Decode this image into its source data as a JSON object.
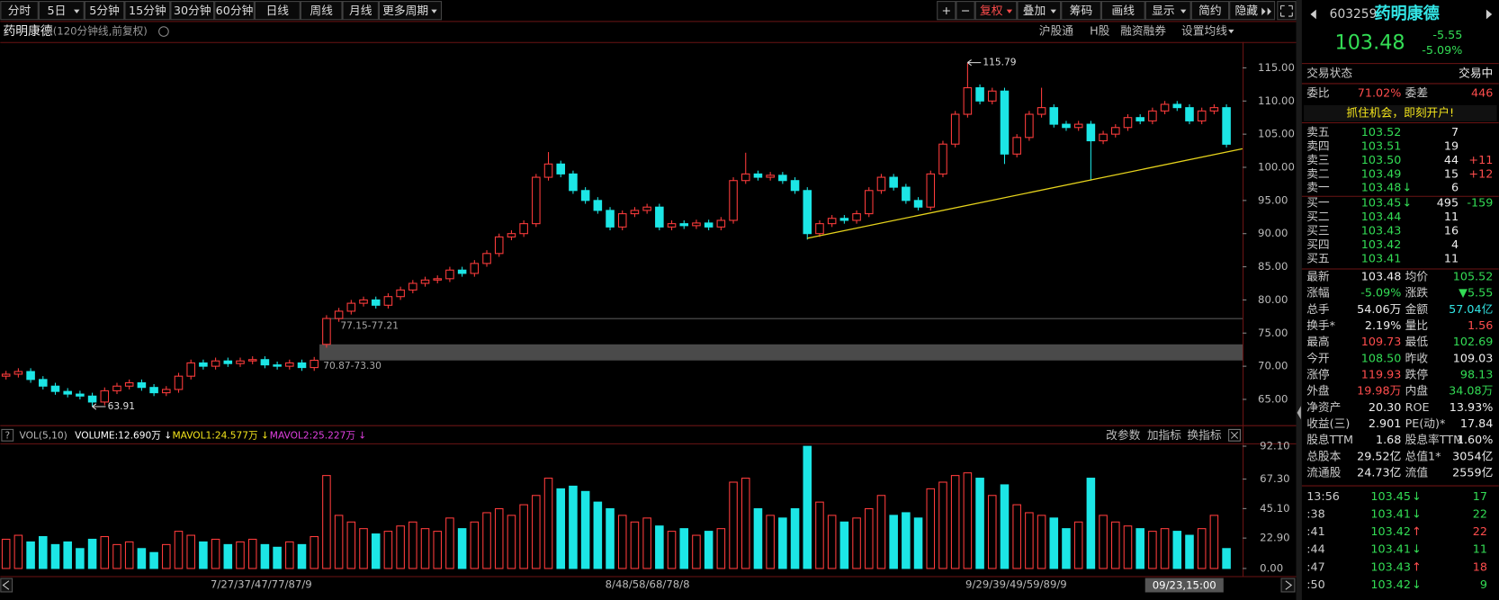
{
  "toolbar": {
    "periods": [
      "分时",
      "5日",
      "5分钟",
      "15分钟",
      "30分钟",
      "60分钟",
      "日线",
      "周线",
      "月线",
      "更多周期"
    ],
    "tools": [
      "+",
      "−",
      "复权",
      "叠加",
      "筹码",
      "画线",
      "显示",
      "简约",
      "隐藏"
    ]
  },
  "header": {
    "name": "药明康德",
    "mode": "(120分钟线,前复权)",
    "links": [
      "沪股通",
      "H股",
      "融资融券",
      "设置均线"
    ]
  },
  "chart_data": [
    {
      "type": "candlestick",
      "open": [
        68.5,
        68.8,
        69.2,
        68.0,
        67.0,
        66.2,
        65.8,
        65.5,
        64.6,
        66.3,
        67.0,
        67.5,
        66.8,
        66.0,
        66.5,
        68.5,
        70.5,
        70.0,
        70.8,
        70.4,
        70.8,
        71.0,
        70.2,
        70.0,
        70.5,
        69.8,
        73.3,
        77.2,
        78.3,
        79.5,
        80.0,
        79.2,
        80.5,
        81.5,
        82.5,
        83.0,
        83.2,
        84.5,
        84.0,
        85.5,
        87.0,
        89.5,
        90.0,
        91.5,
        98.5,
        100.5,
        99.0,
        96.5,
        95.0,
        93.5,
        91.0,
        93.0,
        93.5,
        94.0,
        91.0,
        91.5,
        91.2,
        91.6,
        91.0,
        92.0,
        98.0,
        99.0,
        98.5,
        98.8,
        98.0,
        96.5,
        90.0,
        91.5,
        92.3,
        92.0,
        93.0,
        96.5,
        98.5,
        97.0,
        95.0,
        94.0,
        99.0,
        103.5,
        108.0,
        112.0,
        110.0,
        111.5,
        102.0,
        104.5,
        108.0,
        109.0,
        106.5,
        106.0,
        106.5,
        104.0,
        105.0,
        106.0,
        107.5,
        107.0,
        108.5,
        109.5,
        109.0,
        107.0,
        108.5,
        109.0
      ],
      "high": [
        69.3,
        69.7,
        69.7,
        68.5,
        67.5,
        66.7,
        66.3,
        66.0,
        66.8,
        67.5,
        68.0,
        68.0,
        67.3,
        67.0,
        69.0,
        71.0,
        71.0,
        71.3,
        71.3,
        71.3,
        71.5,
        71.5,
        70.7,
        71.0,
        71.0,
        71.4,
        77.7,
        78.8,
        80.0,
        80.5,
        80.5,
        81.0,
        82.0,
        83.0,
        83.5,
        83.7,
        85.0,
        85.0,
        86.0,
        87.5,
        90.0,
        90.5,
        92.0,
        99.0,
        102.3,
        101.0,
        99.5,
        97.0,
        95.5,
        94.0,
        93.5,
        94.0,
        94.5,
        94.5,
        92.0,
        92.0,
        92.1,
        92.1,
        92.5,
        98.5,
        102.2,
        99.5,
        99.3,
        99.3,
        98.5,
        97.0,
        92.0,
        92.8,
        92.8,
        93.5,
        97.0,
        99.0,
        99.0,
        97.5,
        95.5,
        99.5,
        104.0,
        108.5,
        115.79,
        112.5,
        112.0,
        112.0,
        105.0,
        108.5,
        112.0,
        109.5,
        107.0,
        107.0,
        107.0,
        105.5,
        106.5,
        108.0,
        108.0,
        109.0,
        110.0,
        110.0,
        109.5,
        109.0,
        109.5,
        109.5
      ],
      "low": [
        68.0,
        68.3,
        67.5,
        66.5,
        65.7,
        65.3,
        65.0,
        63.91,
        64.1,
        65.8,
        66.5,
        66.3,
        65.5,
        65.5,
        66.0,
        68.0,
        69.5,
        69.5,
        69.9,
        69.9,
        70.3,
        69.7,
        69.5,
        69.5,
        69.3,
        69.3,
        72.8,
        76.7,
        77.8,
        79.0,
        78.7,
        78.7,
        80.0,
        81.0,
        82.0,
        82.5,
        82.7,
        83.5,
        83.5,
        85.0,
        86.5,
        89.0,
        89.5,
        91.0,
        98.0,
        98.5,
        96.0,
        94.5,
        93.0,
        90.5,
        90.5,
        92.5,
        93.0,
        90.5,
        90.5,
        90.7,
        90.7,
        90.5,
        90.5,
        91.5,
        97.5,
        98.0,
        98.0,
        97.5,
        96.0,
        89.1,
        89.5,
        91.0,
        91.5,
        91.5,
        92.5,
        96.0,
        96.5,
        94.5,
        93.5,
        93.5,
        98.5,
        103.0,
        107.5,
        109.5,
        109.5,
        100.5,
        101.5,
        104.0,
        107.5,
        106.0,
        105.5,
        105.5,
        98.0,
        103.5,
        104.5,
        105.5,
        106.5,
        106.5,
        108.0,
        108.5,
        106.5,
        106.5,
        108.0,
        103.0
      ],
      "close": [
        68.8,
        69.2,
        68.0,
        67.0,
        66.2,
        65.8,
        65.5,
        64.6,
        66.3,
        67.0,
        67.5,
        66.8,
        66.0,
        66.5,
        68.5,
        70.5,
        70.0,
        70.8,
        70.4,
        70.8,
        71.0,
        70.2,
        70.0,
        70.5,
        69.8,
        70.9,
        77.2,
        78.3,
        79.5,
        80.0,
        79.2,
        80.5,
        81.5,
        82.5,
        83.0,
        83.2,
        84.5,
        84.0,
        85.5,
        87.0,
        89.5,
        90.0,
        91.5,
        98.5,
        100.5,
        99.0,
        96.5,
        95.0,
        93.5,
        91.0,
        93.0,
        93.5,
        94.0,
        91.0,
        91.5,
        91.2,
        91.6,
        91.0,
        92.0,
        98.0,
        99.0,
        98.5,
        98.8,
        98.0,
        96.5,
        90.0,
        91.5,
        92.3,
        92.0,
        93.0,
        96.5,
        98.5,
        97.0,
        95.0,
        94.0,
        99.0,
        103.5,
        108.0,
        112.0,
        110.0,
        111.5,
        102.0,
        104.5,
        108.0,
        109.0,
        106.5,
        106.0,
        106.5,
        104.0,
        105.0,
        106.0,
        107.5,
        107.0,
        108.5,
        109.5,
        109.0,
        107.0,
        108.5,
        109.0,
        103.48
      ],
      "ylim": [
        61.4,
        118.75
      ],
      "yticks": [
        {
          "value": 65,
          "label": "65.00"
        },
        {
          "value": 70,
          "label": "70.00"
        },
        {
          "value": 75,
          "label": "75.00"
        },
        {
          "value": 80,
          "label": "80.00"
        },
        {
          "value": 85,
          "label": "85.00"
        },
        {
          "value": 90,
          "label": "90.00"
        },
        {
          "value": 95,
          "label": "95.00"
        },
        {
          "value": 100,
          "label": "100.00"
        },
        {
          "value": 105,
          "label": "105.00"
        },
        {
          "value": 110,
          "label": "110.00"
        },
        {
          "value": 115,
          "label": "115.00"
        }
      ],
      "color_up": "#ff3c3c",
      "color_down": "#1ce6e6",
      "trendline": {
        "x": [
          65,
          100.3
        ],
        "y": [
          89.3,
          102.8
        ],
        "color": "#e6d31c"
      },
      "gap_band": {
        "low": 70.87,
        "high": 73.3,
        "color": "#4a4a4a"
      },
      "gap_line": 77.18,
      "range_labels": [
        "77.15-77.21",
        "70.87-73.30"
      ],
      "x_labels": [
        "7/27/37/47/77/87/9",
        "8/48/58/68/78/8",
        "9/29/39/49/59/89/9"
      ],
      "cursor_label": "09/23,15:00"
    },
    {
      "type": "bar",
      "values": [
        22,
        25,
        20,
        24,
        18,
        20,
        15,
        22,
        24,
        18,
        20,
        15,
        12,
        18,
        28,
        25,
        20,
        22,
        18,
        20,
        22,
        18,
        16,
        20,
        18,
        24,
        70,
        40,
        35,
        30,
        26,
        28,
        32,
        35,
        30,
        28,
        38,
        30,
        35,
        42,
        45,
        40,
        48,
        55,
        68,
        60,
        62,
        58,
        50,
        45,
        40,
        35,
        38,
        32,
        28,
        30,
        25,
        28,
        30,
        65,
        68,
        45,
        40,
        38,
        45,
        92,
        50,
        40,
        35,
        38,
        45,
        55,
        40,
        42,
        38,
        60,
        65,
        70,
        72,
        68,
        55,
        63,
        48,
        42,
        40,
        38,
        30,
        35,
        68,
        40,
        35,
        32,
        30,
        28,
        30,
        28,
        25,
        30,
        40,
        15
      ],
      "ylim": [
        0,
        92.1
      ],
      "yticks": [
        {
          "value": 0,
          "label": "0.00"
        },
        {
          "value": 22.9,
          "label": "22.90"
        },
        {
          "value": 45.1,
          "label": "45.10"
        },
        {
          "value": 67.3,
          "label": "67.30"
        },
        {
          "value": 92.1,
          "label": "92.10"
        }
      ],
      "legend": [
        "VOL(5,10)",
        "VOLUME:12.690万 ↓",
        "MAVOL1:24.577万 ↓",
        "MAVOL2:25.227万 ↓"
      ],
      "tools": [
        "改参数",
        "加指标",
        "换指标"
      ]
    }
  ],
  "quote": {
    "code": "603259",
    "name": "药明康德",
    "price": "103.48",
    "change": "-5.55",
    "pct": "-5.09%",
    "status": [
      "交易状态",
      "交易中"
    ],
    "ratio": [
      "委比",
      "71.02%",
      "委差",
      "446"
    ],
    "banner": "抓住机会，即刻开户!",
    "sell": [
      {
        "label": "卖五",
        "price": "103.52",
        "volume": "7"
      },
      {
        "label": "卖四",
        "price": "103.51",
        "volume": "19"
      },
      {
        "label": "卖三",
        "price": "103.50",
        "volume": "44",
        "delta": "+11"
      },
      {
        "label": "卖二",
        "price": "103.49",
        "volume": "15",
        "delta": "+12"
      },
      {
        "label": "卖一",
        "price": "103.48",
        "dir": "↓",
        "volume": "6"
      }
    ],
    "buy": [
      {
        "label": "买一",
        "price": "103.45",
        "dir": "↓",
        "volume": "495",
        "delta": "-159"
      },
      {
        "label": "买二",
        "price": "103.44",
        "volume": "11"
      },
      {
        "label": "买三",
        "price": "103.43",
        "volume": "16"
      },
      {
        "label": "买四",
        "price": "103.42",
        "volume": "4"
      },
      {
        "label": "买五",
        "price": "103.41",
        "volume": "11"
      }
    ],
    "stats": [
      [
        "最新",
        "103.48",
        "均价",
        "105.52"
      ],
      [
        "涨幅",
        "-5.09%",
        "涨跌",
        "▼5.55"
      ],
      [
        "总手",
        "54.06万",
        "金额",
        "57.04亿"
      ],
      [
        "换手*",
        "2.19%",
        "量比",
        "1.56"
      ],
      [
        "最高",
        "109.73",
        "最低",
        "102.69"
      ],
      [
        "今开",
        "108.50",
        "昨收",
        "109.03"
      ],
      [
        "涨停",
        "119.93",
        "跌停",
        "98.13"
      ],
      [
        "外盘",
        "19.98万",
        "内盘",
        "34.08万"
      ],
      [
        "净资产",
        "20.30",
        "ROE",
        "13.93%"
      ],
      [
        "收益(三)",
        "2.901",
        "PE(动)*",
        "17.84"
      ],
      [
        "股息TTM",
        "1.68",
        "股息率TTM",
        "1.60%"
      ],
      [
        "总股本",
        "29.52亿",
        "总值1*",
        "3054亿"
      ],
      [
        "流通股",
        "24.73亿",
        "流值",
        "2559亿"
      ]
    ],
    "ticks": [
      {
        "time": "13:56",
        "price": "103.45",
        "dir": "↓",
        "volume": "17"
      },
      {
        "time": ":38",
        "price": "103.41",
        "dir": "↓",
        "volume": "22"
      },
      {
        "time": ":41",
        "price": "103.42",
        "dir": "↑",
        "volume": "22"
      },
      {
        "time": ":44",
        "price": "103.41",
        "dir": "↓",
        "volume": "11"
      },
      {
        "time": ":47",
        "price": "103.43",
        "dir": "↑",
        "volume": "18"
      },
      {
        "time": ":50",
        "price": "103.42",
        "dir": "↓",
        "volume": "9"
      }
    ]
  }
}
